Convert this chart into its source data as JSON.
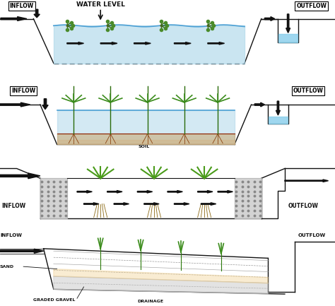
{
  "bg_color": "#ffffff",
  "line_color": "#111111",
  "water_color": "#a8d4e8",
  "water_color2": "#87ceeb",
  "gravel_color": "#c8c8c8",
  "soil_color_top": "#c8a060",
  "soil_color_bot": "#d4b896",
  "diagram1": {
    "title": "WATER LEVEL",
    "inflow_label": "INFLOW",
    "outflow_label": "OUTFLOW"
  },
  "diagram2": {
    "inflow_label": "INFLOW",
    "outflow_label": "OUTFLOW",
    "soil_label": "SOIL"
  },
  "diagram3": {
    "inflow_label": "INFLOW",
    "outflow_label": "OUTFLOW"
  },
  "diagram4": {
    "inflow_label": "INFLOW",
    "outflow_label": "OUTFLOW",
    "sand_label": "SAND",
    "gravel_label": "GRADED GRAVEL",
    "drainage_label": "DRAINAGE"
  }
}
